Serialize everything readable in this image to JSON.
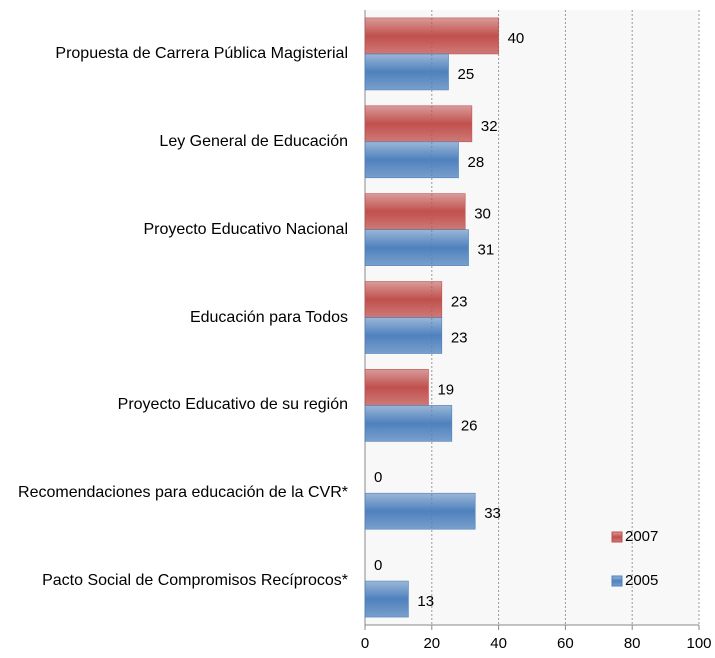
{
  "chart_data": {
    "type": "barh",
    "categories": [
      "Propuesta de Carrera Pública Magisterial",
      "Ley General de Educación",
      "Proyecto Educativo Nacional",
      "Educación para Todos",
      "Proyecto Educativo de su región",
      "Recomendaciones para educación de la CVR*",
      "Pacto Social de Compromisos Recíprocos*"
    ],
    "series": [
      {
        "name": "2007",
        "color": "#c0504d",
        "values": [
          40,
          32,
          30,
          23,
          19,
          0,
          0
        ]
      },
      {
        "name": "2005",
        "color": "#4f81bd",
        "values": [
          25,
          28,
          31,
          23,
          26,
          33,
          13
        ]
      }
    ],
    "xlim": [
      0,
      100
    ],
    "xticks": [
      0,
      20,
      40,
      60,
      80,
      100
    ],
    "grid": true,
    "legend": "lower right"
  }
}
